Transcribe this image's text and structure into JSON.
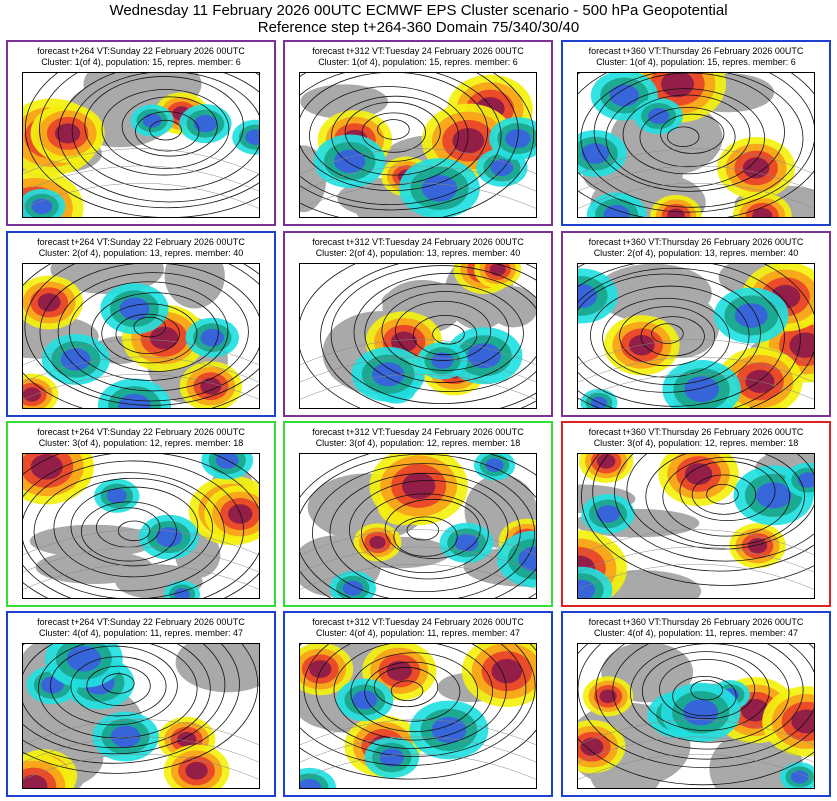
{
  "header": {
    "title": "Wednesday 11 February 2026 00UTC ECMWF EPS Cluster scenario - 500 hPa Geopotential",
    "subtitle": "Reference step t+264-360 Domain 75/340/30/40"
  },
  "colors": {
    "purple": "#7b3294",
    "blue": "#1f3fcf",
    "green": "#33dd33",
    "red": "#e02020",
    "anom_dark_red": "#8b1a4a",
    "anom_red": "#e8432a",
    "anom_orange": "#f7a21b",
    "anom_yellow": "#f4f10f",
    "anom_cyan": "#22e0e0",
    "anom_teal": "#1aa58c",
    "anom_blue": "#3a5fe0",
    "land": "#a9a9a9"
  },
  "panels": [
    {
      "line1": "forecast t+264 VT:Sunday 22 February 2026 00UTC",
      "line2": "Cluster: 1(of 4), population: 15, repres. member: 6",
      "border": "purple"
    },
    {
      "line1": "forecast t+312 VT:Tuesday 24 February 2026 00UTC",
      "line2": "Cluster: 1(of 4), population: 15, repres. member: 6",
      "border": "purple"
    },
    {
      "line1": "forecast t+360 VT:Thursday 26 February 2026 00UTC",
      "line2": "Cluster: 1(of 4), population: 15, repres. member: 6",
      "border": "blue"
    },
    {
      "line1": "forecast t+264 VT:Sunday 22 February 2026 00UTC",
      "line2": "Cluster: 2(of 4), population: 13, repres. member: 40",
      "border": "blue"
    },
    {
      "line1": "forecast t+312 VT:Tuesday 24 February 2026 00UTC",
      "line2": "Cluster: 2(of 4), population: 13, repres. member: 40",
      "border": "purple"
    },
    {
      "line1": "forecast t+360 VT:Thursday 26 February 2026 00UTC",
      "line2": "Cluster: 2(of 4), population: 13, repres. member: 40",
      "border": "purple"
    },
    {
      "line1": "forecast t+264 VT:Sunday 22 February 2026 00UTC",
      "line2": "Cluster: 3(of 4), population: 12, repres. member: 18",
      "border": "green"
    },
    {
      "line1": "forecast t+312 VT:Tuesday 24 February 2026 00UTC",
      "line2": "Cluster: 3(of 4), population: 12, repres. member: 18",
      "border": "green"
    },
    {
      "line1": "forecast t+360 VT:Thursday 26 February 2026 00UTC",
      "line2": "Cluster: 3(of 4), population: 12, repres. member: 18",
      "border": "red"
    },
    {
      "line1": "forecast t+264 VT:Sunday 22 February 2026 00UTC",
      "line2": "Cluster: 4(of 4), population: 11, repres. member: 47",
      "border": "blue"
    },
    {
      "line1": "forecast t+312 VT:Tuesday 24 February 2026 00UTC",
      "line2": "Cluster: 4(of 4), population: 11, repres. member: 47",
      "border": "blue"
    },
    {
      "line1": "forecast t+360 VT:Thursday 26 February 2026 00UTC",
      "line2": "Cluster: 4(of 4), population: 11, repres. member: 47",
      "border": "blue"
    }
  ]
}
